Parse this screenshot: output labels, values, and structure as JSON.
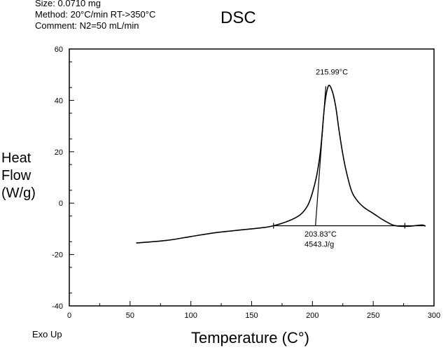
{
  "header": {
    "size": "Size: 0.0710 mg",
    "method": "Method: 20°C/min RT->350°C",
    "comment": "Comment: N2=50 mL/min"
  },
  "footnote": "Exo Up",
  "chart_data": {
    "type": "line",
    "title": "DSC",
    "xlabel": "Temperature (C°)",
    "ylabel_lines": [
      "Heat",
      "Flow",
      "(W/g)"
    ],
    "xlim": [
      0,
      300
    ],
    "ylim": [
      -40,
      60
    ],
    "xticks": [
      0,
      50,
      100,
      150,
      200,
      250,
      300
    ],
    "yticks": [
      60,
      40,
      20,
      0,
      -20,
      -40
    ],
    "grid": false,
    "series": [
      {
        "x": [
          55,
          80,
          100,
          120,
          140,
          160,
          168,
          180,
          190,
          196,
          200,
          204,
          207,
          210,
          213,
          216,
          219,
          222,
          225,
          228,
          232,
          236,
          242,
          250,
          258,
          266,
          272,
          280,
          290,
          293
        ],
        "y": [
          -15.5,
          -14.5,
          -13,
          -11.5,
          -10.5,
          -9.5,
          -8.8,
          -7,
          -4.5,
          -1,
          4,
          12,
          22,
          38,
          45.5,
          44,
          38,
          28,
          19,
          12,
          5,
          1.5,
          -1.5,
          -4,
          -6.5,
          -8.5,
          -9,
          -9,
          -8.5,
          -9
        ]
      }
    ],
    "baseline": {
      "x": [
        168,
        293
      ],
      "y": [
        -8.8,
        -8.8
      ]
    },
    "onset_line": {
      "x": [
        202.5,
        211
      ],
      "y": [
        -8.8,
        45.5
      ]
    },
    "tick_marks_on_curve": [
      168,
      276
    ],
    "annotations": [
      {
        "label": "215.99°C",
        "x": 216,
        "y": 50
      },
      {
        "label": "203.83°C",
        "x": 203.83,
        "y": -13
      },
      {
        "label": "4543.J/g",
        "x": 203.83,
        "y": -17
      }
    ]
  }
}
